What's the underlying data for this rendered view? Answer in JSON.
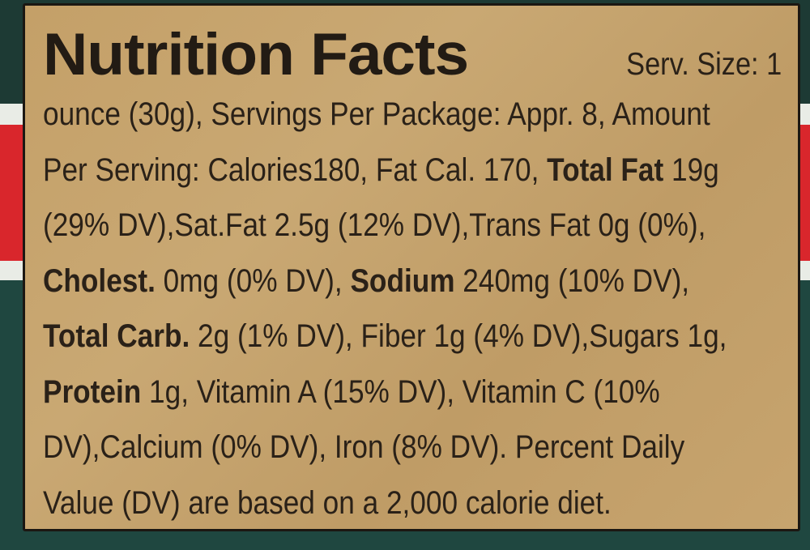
{
  "label": {
    "title": "Nutrition Facts",
    "serving_size_head": "Serv. Size: 1",
    "lines": [
      [
        "ounce (30g), Servings Per Package: Appr. 8, Amount"
      ],
      [
        "Per Serving: Calories180, Fat Cal. 170, ",
        "Total Fat",
        " 19g"
      ],
      [
        "(29% DV),Sat.Fat 2.5g (12% DV),Trans Fat 0g (0%),"
      ],
      [
        "Cholest.",
        " 0mg (0% DV), ",
        "Sodium",
        " 240mg (10% DV),"
      ],
      [
        "Total Carb.",
        " 2g (1% DV), Fiber 1g (4% DV),Sugars 1g,"
      ],
      [
        "Protein",
        " 1g, Vitamin A (15% DV), Vitamin C (10%"
      ],
      [
        "DV),Calcium (0% DV), Iron (8% DV). Percent Daily"
      ],
      [
        "Value (DV) are based on a 2,000 calorie diet."
      ]
    ]
  },
  "colors": {
    "label_gold": "#c6a36c",
    "ink": "#2a2118",
    "package_red": "#d9262c",
    "package_teal": "#1f4740"
  }
}
